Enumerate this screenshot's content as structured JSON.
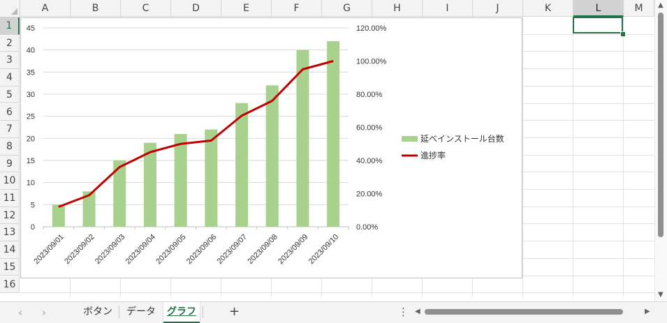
{
  "columns": [
    "A",
    "B",
    "C",
    "D",
    "E",
    "F",
    "G",
    "H",
    "I",
    "J",
    "K",
    "L",
    "M"
  ],
  "rows": [
    "1",
    "2",
    "3",
    "4",
    "5",
    "6",
    "7",
    "8",
    "9",
    "10",
    "11",
    "12",
    "13",
    "14",
    "15",
    "16"
  ],
  "selected_cell": {
    "column": "L",
    "row": "1"
  },
  "sheet_tabs": [
    "ボタン",
    "データ",
    "グラフ"
  ],
  "active_tab": "グラフ",
  "tab_bar": {
    "prev_icon": "‹",
    "next_icon": "›",
    "add_icon": "+",
    "more_icon": "⋮"
  },
  "chart_data": {
    "type": "bar",
    "categories": [
      "2023/09/01",
      "2023/09/02",
      "2023/09/03",
      "2023/09/04",
      "2023/09/05",
      "2023/09/06",
      "2023/09/07",
      "2023/09/08",
      "2023/09/09",
      "2023/09/10"
    ],
    "series": [
      {
        "name": "延べインストール台数",
        "type": "bar",
        "axis": "left",
        "values": [
          5,
          8,
          15,
          19,
          21,
          22,
          28,
          32,
          40,
          42
        ],
        "color": "#a9d18e"
      },
      {
        "name": "進捗率",
        "type": "line",
        "axis": "right",
        "values": [
          0.12,
          0.19,
          0.36,
          0.45,
          0.5,
          0.52,
          0.67,
          0.76,
          0.95,
          1.0
        ],
        "color": "#c00000"
      }
    ],
    "y_left": {
      "min": 0,
      "max": 45,
      "step": 5,
      "ticks": [
        "0",
        "5",
        "10",
        "15",
        "20",
        "25",
        "30",
        "35",
        "40",
        "45"
      ]
    },
    "y_right": {
      "min": 0,
      "max": 1.2,
      "step": 0.2,
      "ticks": [
        "0.00%",
        "20.00%",
        "40.00%",
        "60.00%",
        "80.00%",
        "100.00%",
        "120.00%"
      ]
    },
    "grid": true,
    "legend_position": "right",
    "title": "",
    "xlabel": "",
    "ylabel": ""
  }
}
